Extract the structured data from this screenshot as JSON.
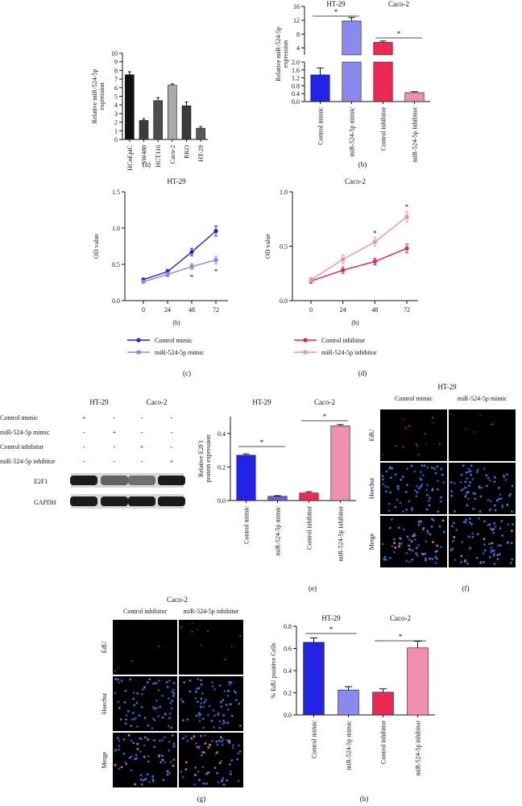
{
  "panels": {
    "a": "(a)",
    "b": "(b)",
    "c": "(c)",
    "d": "(d)",
    "e": "(e)",
    "f": "(f)",
    "g": "(g)",
    "h": "(h)"
  },
  "chart_data": [
    {
      "id": "a",
      "type": "bar",
      "ylabel_lines": [
        "Relative miR-524-5p",
        "expression"
      ],
      "categories": [
        "HCoEpiC",
        "SW480",
        "HCT116",
        "Caco-2",
        "RKO",
        "HT-29"
      ],
      "values": [
        7.5,
        2.2,
        4.5,
        6.3,
        3.9,
        1.3
      ],
      "errors": [
        0.35,
        0.2,
        0.35,
        0.15,
        0.45,
        0.2
      ],
      "colors": [
        "#111111",
        "#3d3d3d",
        "#4d4d4d",
        "#aaaaaa",
        "#3a3a3a",
        "#5a5a5a"
      ],
      "ylim": [
        0,
        10
      ],
      "yticks": [
        0,
        1,
        2,
        3,
        4,
        5,
        6,
        7,
        8,
        9,
        10
      ]
    },
    {
      "id": "b",
      "type": "bar",
      "axis_break": true,
      "ylabel_lines": [
        "Relative miR-524-5p",
        "expression"
      ],
      "group_titles": [
        "HT-29",
        "Caco-2"
      ],
      "categories": [
        "Control mimic",
        "miR-524-5p mimic",
        "Control inhibitor",
        "miR-524-5p inhibitor"
      ],
      "values": [
        1.35,
        11.8,
        5.6,
        0.45
      ],
      "errors": [
        0.35,
        1.0,
        0.4,
        0.05
      ],
      "colors": [
        "#2323e8",
        "#8a8aee",
        "#ee2855",
        "#f08fb0"
      ],
      "yticks_lower": [
        0.0,
        0.4,
        0.8,
        1.2,
        1.6,
        2.0
      ],
      "yticks_upper": [
        4,
        8,
        12,
        16
      ],
      "significance": [
        {
          "pair": [
            0,
            1
          ],
          "label": "*"
        },
        {
          "pair": [
            2,
            3
          ],
          "label": "*"
        }
      ]
    },
    {
      "id": "c",
      "type": "line",
      "title": "HT-29",
      "xlabel": "(h)",
      "ylabel": "OD value",
      "x": [
        0,
        24,
        48,
        72
      ],
      "xticks": [
        0,
        24,
        48,
        72
      ],
      "ylim": [
        0,
        1.5
      ],
      "yticks": [
        0.0,
        0.5,
        1.0,
        1.5
      ],
      "series": [
        {
          "name": "Control mimic",
          "values": [
            0.29,
            0.4,
            0.67,
            0.96
          ],
          "errors": [
            0.02,
            0.03,
            0.05,
            0.07
          ],
          "color": "#2323c8",
          "marker": "circle"
        },
        {
          "name": "miR-524-5p mimic",
          "values": [
            0.26,
            0.36,
            0.47,
            0.56
          ],
          "errors": [
            0.02,
            0.03,
            0.04,
            0.05
          ],
          "color": "#8a8aee",
          "marker": "square"
        }
      ],
      "annotations": [
        {
          "x": 48,
          "y": 0.32,
          "label": "*"
        },
        {
          "x": 72,
          "y": 0.4,
          "label": "*"
        }
      ]
    },
    {
      "id": "d",
      "type": "line",
      "title": "Caco-2",
      "xlabel": "(h)",
      "ylabel": "OD value",
      "x": [
        0,
        24,
        48,
        72
      ],
      "xticks": [
        0,
        24,
        48,
        72
      ],
      "ylim": [
        0,
        1.0
      ],
      "yticks": [
        0.0,
        0.5,
        1.0
      ],
      "series": [
        {
          "name": "Control inhibitor",
          "values": [
            0.18,
            0.28,
            0.36,
            0.48
          ],
          "errors": [
            0.02,
            0.03,
            0.03,
            0.04
          ],
          "color": "#e8204a",
          "marker": "circle"
        },
        {
          "name": "miR-524-5p inhibitor",
          "values": [
            0.19,
            0.38,
            0.54,
            0.77
          ],
          "errors": [
            0.02,
            0.04,
            0.04,
            0.05
          ],
          "color": "#f08fb0",
          "marker": "square"
        }
      ],
      "annotations": [
        {
          "x": 48,
          "y": 0.62,
          "label": "*"
        },
        {
          "x": 72,
          "y": 0.86,
          "label": "*"
        }
      ]
    },
    {
      "id": "e",
      "type": "bar",
      "ylabel_lines": [
        "Relative E2F1",
        "protein expression"
      ],
      "group_titles": [
        "HT-29",
        "Caco-2"
      ],
      "categories": [
        "Control mimic",
        "miR-524-5p mimic",
        "Control inhibitor",
        "miR-524-5p inhibitor"
      ],
      "values": [
        0.27,
        0.025,
        0.045,
        0.445
      ],
      "errors": [
        0.008,
        0.004,
        0.008,
        0.008
      ],
      "colors": [
        "#2323e8",
        "#6b5fd6",
        "#ee2855",
        "#f08fb0"
      ],
      "ylim": [
        0,
        0.5
      ],
      "yticks": [
        0.0,
        0.2,
        0.4
      ],
      "significance": [
        {
          "pair": [
            0,
            1
          ],
          "label": "*"
        },
        {
          "pair": [
            2,
            3
          ],
          "label": "*"
        }
      ]
    },
    {
      "id": "h",
      "type": "bar",
      "ylabel": "% EdU positive Cells",
      "group_titles": [
        "HT-29",
        "Caco-2"
      ],
      "categories": [
        "Control mimic",
        "miR-524-5p mimic",
        "Control inhibitor",
        "miR-524-5p inhibitor"
      ],
      "values": [
        0.655,
        0.225,
        0.205,
        0.605
      ],
      "errors": [
        0.04,
        0.03,
        0.03,
        0.06
      ],
      "colors": [
        "#2323e8",
        "#8a8aee",
        "#ee2855",
        "#f08fb0"
      ],
      "ylim": [
        0,
        0.8
      ],
      "yticks": [
        0.0,
        0.2,
        0.4,
        0.6,
        0.8
      ],
      "significance": [
        {
          "pair": [
            0,
            1
          ],
          "label": "*"
        },
        {
          "pair": [
            2,
            3
          ],
          "label": "*"
        }
      ]
    }
  ],
  "western_blot": {
    "group_titles": [
      "HT-29",
      "Caco-2"
    ],
    "rows": [
      {
        "label": "Control mimic",
        "marks": [
          "+",
          "-",
          "-",
          "-"
        ]
      },
      {
        "label": "miR-524-5p mimic",
        "marks": [
          "-",
          "+",
          "-",
          "-"
        ]
      },
      {
        "label": "Control inhibitor",
        "marks": [
          "-",
          "-",
          "+",
          "-"
        ]
      },
      {
        "label": "miR-524-5p inhibitor",
        "marks": [
          "-",
          "-",
          "-",
          "+"
        ]
      }
    ],
    "bands": [
      {
        "label": "E2F1",
        "intensity": [
          0.95,
          0.65,
          0.6,
          0.95
        ]
      },
      {
        "label": "GAPDH",
        "intensity": [
          0.95,
          0.95,
          0.95,
          0.95
        ]
      }
    ]
  },
  "microscopy_f": {
    "title": "HT-29",
    "columns": [
      "Control mimic",
      "miR-524-5p mimic"
    ],
    "rows": [
      "EdU",
      "Hoechst",
      "Merge"
    ]
  },
  "microscopy_g": {
    "title": "Caco-2",
    "columns": [
      "Control inhibitor",
      "miR-524-5p inhibitor"
    ],
    "rows": [
      "EdU",
      "Hoechst",
      "Merge"
    ]
  }
}
